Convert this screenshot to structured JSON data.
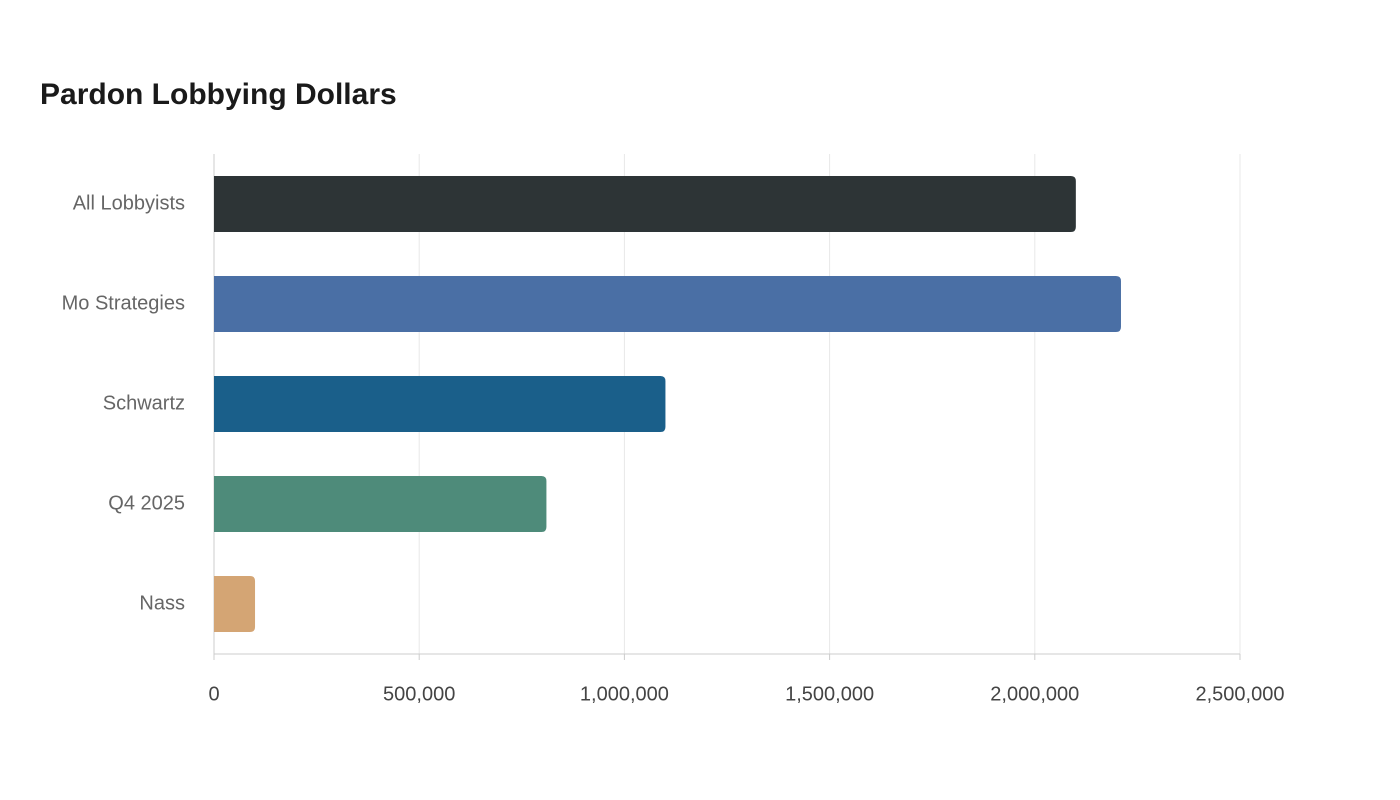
{
  "chart_data": {
    "type": "hbar",
    "title": "Pardon Lobbying Dollars",
    "categories": [
      "All Lobbyists",
      "Mo Strategies",
      "Schwartz",
      "Q4 2025",
      "Nass"
    ],
    "values": [
      2100000,
      2210000,
      1100000,
      810000,
      100000
    ],
    "colors": [
      "#2d3436",
      "#4a6fa5",
      "#1a5f8a",
      "#4e8b7a",
      "#d4a574"
    ],
    "xlim": [
      0,
      2500000
    ],
    "xticks": [
      0,
      {
        "value": 500000,
        "label": "500,000"
      },
      {
        "value": 1000000,
        "label": "1,000,000"
      },
      {
        "value": 1500000,
        "label": "1,500,000"
      },
      {
        "value": 2000000,
        "label": "2,000,000"
      },
      {
        "value": 2500000,
        "label": "2,500,000"
      }
    ],
    "grid": true
  }
}
